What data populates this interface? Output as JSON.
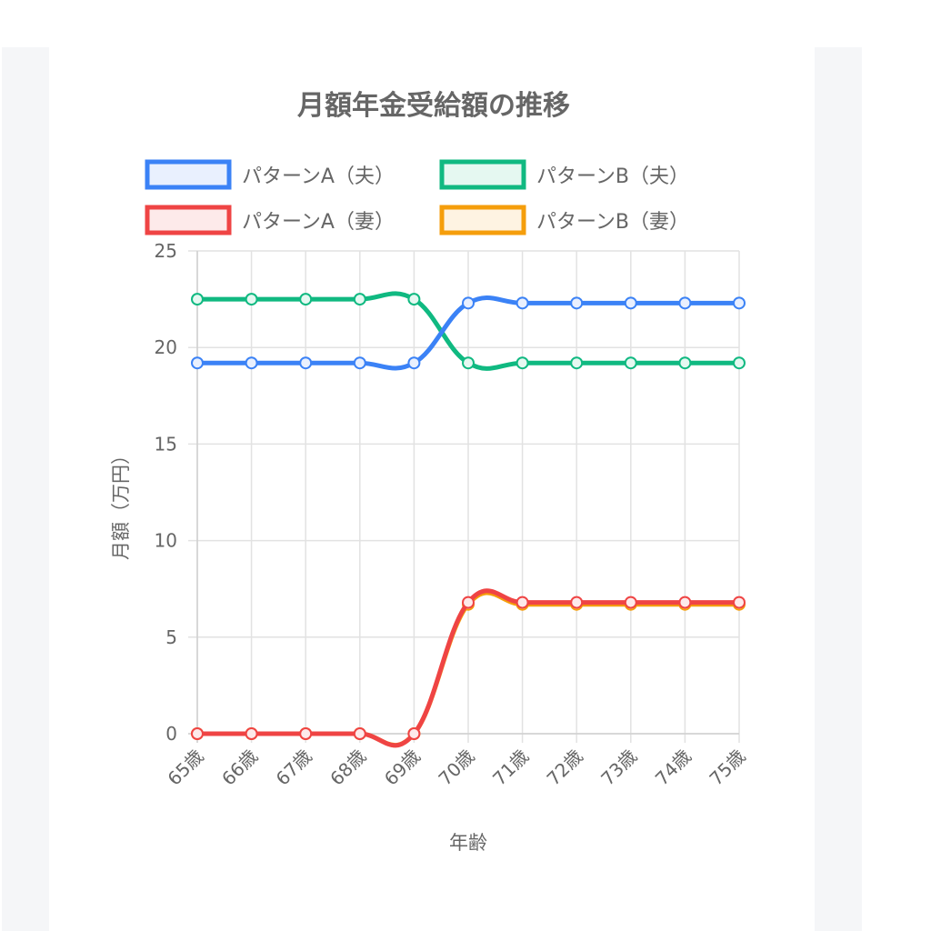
{
  "chart_data": {
    "type": "line",
    "title": "月額年金受給額の推移",
    "xlabel": "年齢",
    "ylabel": "月額（万円）",
    "categories": [
      "65歳",
      "66歳",
      "67歳",
      "68歳",
      "69歳",
      "70歳",
      "71歳",
      "72歳",
      "73歳",
      "74歳",
      "75歳"
    ],
    "ylim": [
      0,
      25
    ],
    "yticks": [
      "0",
      "5",
      "10",
      "15",
      "20",
      "25"
    ],
    "grid": true,
    "legend_position": "top",
    "series": [
      {
        "name": "パターンA（夫）",
        "color": "#3b82f6",
        "fill": "#e9f0fe",
        "values": [
          19.2,
          19.2,
          19.2,
          19.2,
          19.2,
          22.3,
          22.3,
          22.3,
          22.3,
          22.3,
          22.3
        ]
      },
      {
        "name": "パターンB（夫）",
        "color": "#10b981",
        "fill": "#e5f8f1",
        "values": [
          22.5,
          22.5,
          22.5,
          22.5,
          22.5,
          19.2,
          19.2,
          19.2,
          19.2,
          19.2,
          19.2
        ]
      },
      {
        "name": "パターンA（妻）",
        "color": "#ef4444",
        "fill": "#fdeaea",
        "values": [
          0,
          0,
          0,
          0,
          0,
          6.8,
          6.8,
          6.8,
          6.8,
          6.8,
          6.8
        ]
      },
      {
        "name": "パターンB（妻）",
        "color": "#f59e0b",
        "fill": "#fef3e2",
        "values": [
          0,
          0,
          0,
          0,
          0,
          6.7,
          6.7,
          6.7,
          6.7,
          6.7,
          6.7
        ]
      }
    ]
  }
}
